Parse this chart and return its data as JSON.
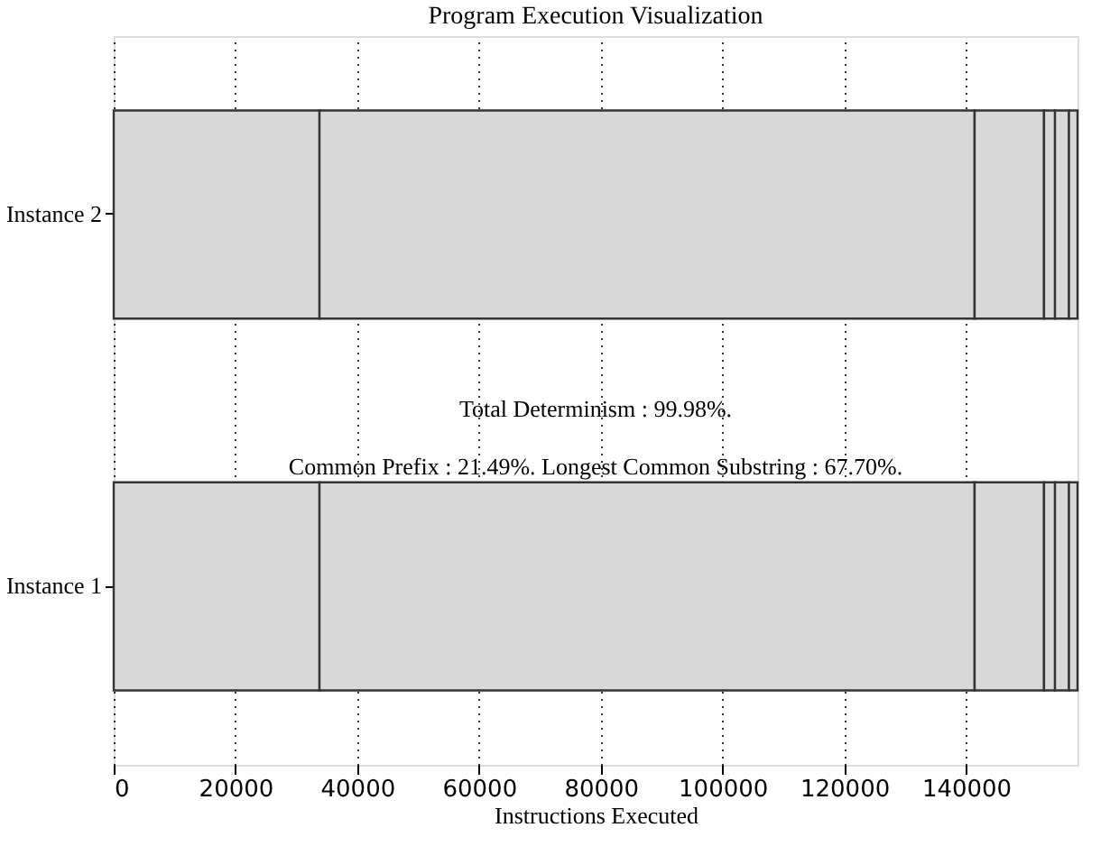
{
  "chart_data": {
    "type": "bar",
    "title": "Program Execution Visualization",
    "xlabel": "Instructions Executed",
    "orientation": "horizontal",
    "stacked": true,
    "categories": [
      "Instance 2",
      "Instance 1"
    ],
    "series": [
      {
        "color": "#d8d8d8",
        "values": [
          33800,
          33800
        ]
      },
      {
        "color": "#d8d8d8",
        "values": [
          107600,
          107600
        ]
      },
      {
        "color": "#d8d8d8",
        "values": [
          11400,
          11400
        ]
      },
      {
        "color": "#d8d8d8",
        "values": [
          1800,
          1800
        ]
      },
      {
        "color": "#d8d8d8",
        "values": [
          2300,
          2300
        ]
      },
      {
        "color": "#d8d8d8",
        "values": [
          1400,
          1400
        ]
      }
    ],
    "xlim": [
      0,
      158300
    ],
    "xticks": [
      0,
      20000,
      40000,
      60000,
      80000,
      100000,
      120000,
      140000
    ],
    "grid": true,
    "annotations": [
      "Total Determinism : 99.98%.",
      "Common Prefix : 21.49%. Longest Common Substring : 67.70%."
    ]
  }
}
